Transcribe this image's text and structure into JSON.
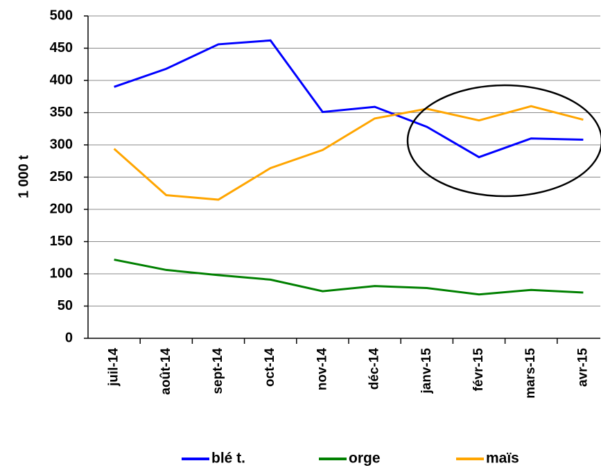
{
  "chart_data": {
    "type": "line",
    "ylabel": "1 000 t",
    "categories": [
      "juil-14",
      "août-14",
      "sept-14",
      "oct-14",
      "nov-14",
      "déc-14",
      "janv-15",
      "févr-15",
      "mars-15",
      "avr-15"
    ],
    "series": [
      {
        "name": "blé t.",
        "color": "#0000ff",
        "values": [
          390,
          418,
          456,
          462,
          351,
          359,
          328,
          281,
          310,
          308
        ]
      },
      {
        "name": "orge",
        "color": "#008000",
        "values": [
          122,
          106,
          98,
          91,
          73,
          81,
          78,
          68,
          75,
          71
        ]
      },
      {
        "name": "maïs",
        "color": "#ffa500",
        "values": [
          294,
          222,
          215,
          264,
          292,
          341,
          356,
          338,
          360,
          339
        ]
      }
    ],
    "ylim": [
      0,
      500
    ],
    "yticks": [
      0,
      50,
      100,
      150,
      200,
      250,
      300,
      350,
      400,
      450,
      500
    ],
    "grid": true,
    "legend": "bottom"
  }
}
